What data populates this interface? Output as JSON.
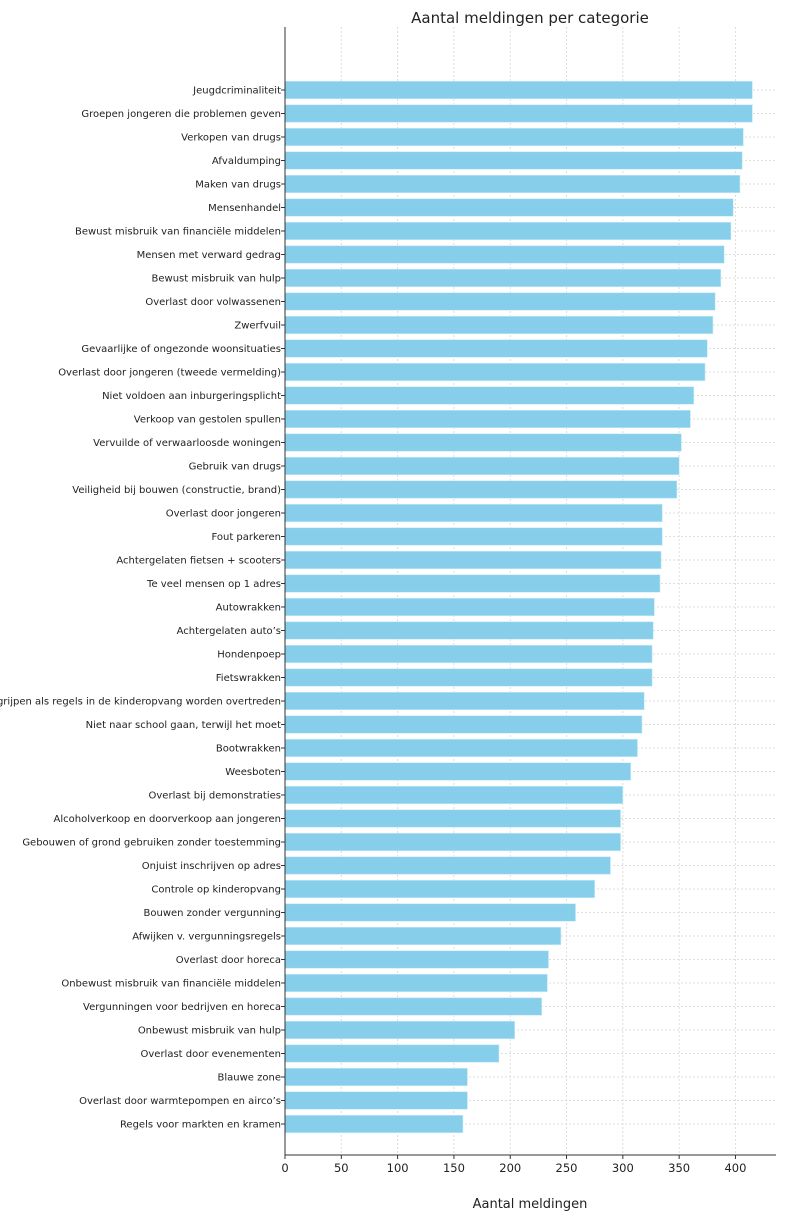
{
  "chart_data": {
    "type": "bar",
    "orientation": "horizontal",
    "title": "Aantal meldingen per categorie",
    "xlabel": "Aantal meldingen",
    "ylabel": "",
    "xlim": [
      0,
      436
    ],
    "xticks": [
      "0",
      "50",
      "100",
      "150",
      "200",
      "250",
      "300",
      "350",
      "400"
    ],
    "grid": true,
    "color": "#87CEEB",
    "categories": [
      "Jeugdcriminaliteit",
      "Groepen jongeren die problemen geven",
      "Verkopen van drugs",
      "Afvaldumping",
      "Maken van drugs",
      "Mensenhandel",
      "Bewust misbruik van financiële middelen",
      "Mensen met verward gedrag",
      "Bewust misbruik van hulp",
      "Overlast door volwassenen",
      "Zwerfvuil",
      "Gevaarlijke of ongezonde woonsituaties",
      "Overlast door jongeren (tweede vermelding)",
      "Niet voldoen aan inburgeringsplicht",
      "Verkoop van gestolen spullen",
      "Vervuilde of verwaarloosde woningen",
      "Gebruik van drugs",
      "Veiligheid bij bouwen (constructie, brand)",
      "Overlast door jongeren",
      "Fout parkeren",
      "Achtergelaten fietsen + scooters",
      "Te veel mensen op 1 adres",
      "Autowrakken",
      "Achtergelaten auto’s",
      "Hondenpoep",
      "Fietswrakken",
      "Ingrijpen als regels in de kinderopvang worden overtreden",
      "Niet naar school gaan, terwijl het moet",
      "Bootwrakken",
      "Weesboten",
      "Overlast bij demonstraties",
      "Alcoholverkoop en doorverkoop aan jongeren",
      "Gebouwen of grond gebruiken zonder toestemming",
      "Onjuist inschrijven op adres",
      "Controle op kinderopvang",
      "Bouwen zonder vergunning",
      "Afwijken v. vergunningsregels",
      "Overlast door horeca",
      "Onbewust misbruik van financiële middelen",
      "Vergunningen voor bedrijven en horeca",
      "Onbewust misbruik van hulp",
      "Overlast door evenementen",
      "Blauwe zone",
      "Overlast door warmtepompen en airco’s",
      "Regels voor markten en kramen"
    ],
    "values": [
      415,
      415,
      407,
      406,
      404,
      398,
      396,
      390,
      387,
      382,
      380,
      375,
      373,
      363,
      360,
      352,
      350,
      348,
      335,
      335,
      334,
      333,
      328,
      327,
      326,
      326,
      319,
      317,
      313,
      307,
      300,
      298,
      298,
      289,
      275,
      258,
      245,
      234,
      233,
      228,
      204,
      190,
      162,
      162,
      158
    ]
  }
}
